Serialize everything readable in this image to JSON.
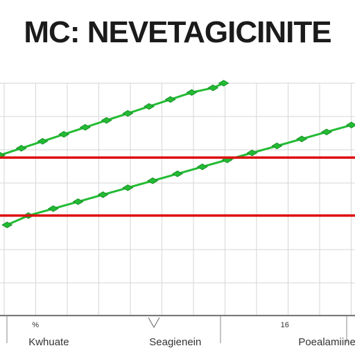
{
  "title": "MC: NEVETAGICINITE",
  "chart_data": {
    "type": "line",
    "title": "MC: NEVETAGICINITE",
    "xlabel": "",
    "ylabel": "",
    "grid": true,
    "xlim": [
      0,
      10
    ],
    "ylim": [
      0,
      10
    ],
    "x_tick_labels": [
      {
        "text": "Kwhuate",
        "x": 1.0
      },
      {
        "text": "Seagienein",
        "x": 4.4
      },
      {
        "text": "Poealamiine",
        "x": 8.6
      }
    ],
    "x_small_labels": [
      {
        "text": "%",
        "x": 1.0
      },
      {
        "text": "16",
        "x": 8.0
      }
    ],
    "series": [
      {
        "color": "#22bb33",
        "style": "marker-line",
        "x": [
          0.0,
          0.6,
          1.2,
          1.8,
          2.4,
          3.0,
          3.6,
          4.2,
          4.8,
          5.4,
          6.0,
          6.3
        ],
        "y": [
          6.9,
          7.2,
          7.5,
          7.8,
          8.1,
          8.4,
          8.7,
          9.0,
          9.3,
          9.6,
          9.8,
          10.0
        ]
      },
      {
        "color": "#22bb33",
        "style": "marker-line",
        "x": [
          0.2,
          0.8,
          1.5,
          2.2,
          2.9,
          3.6,
          4.3,
          5.0,
          5.7,
          6.4,
          7.1,
          7.8,
          8.5,
          9.2,
          9.9
        ],
        "y": [
          3.9,
          4.3,
          4.6,
          4.9,
          5.2,
          5.5,
          5.8,
          6.1,
          6.4,
          6.7,
          7.0,
          7.3,
          7.6,
          7.9,
          8.2
        ]
      },
      {
        "color": "#dd1111",
        "style": "line",
        "x": [
          0,
          10
        ],
        "y": [
          6.8,
          6.8
        ]
      },
      {
        "color": "#dd1111",
        "style": "line",
        "x": [
          0,
          10
        ],
        "y": [
          4.3,
          4.3
        ]
      }
    ]
  }
}
